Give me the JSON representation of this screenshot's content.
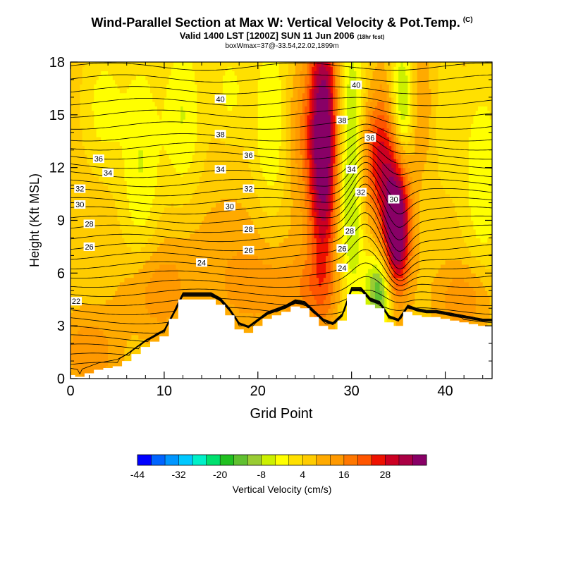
{
  "title": "Wind-Parallel Section at Max W: Vertical Velocity & Pot.Temp.",
  "title_mark": "(C)",
  "valid": "Valid 1400 LST [1200Z] SUN 11 Jun 2006",
  "valid_note": "(18hr fcst)",
  "box_info": "boxWmax=37@-33.54,22.02,1899m",
  "chart_data": {
    "type": "heatmap",
    "xlabel": "Grid Point",
    "ylabel": "Height (Kft MSL)",
    "xlim": [
      0,
      45
    ],
    "ylim": [
      0,
      18
    ],
    "xticks": [
      "0",
      "10",
      "20",
      "30",
      "40"
    ],
    "yticks": [
      "0",
      "3",
      "6",
      "9",
      "12",
      "15",
      "18"
    ],
    "colorbar": {
      "label": "Vertical Velocity (cm/s)",
      "tick_labels": [
        "-44",
        "-32",
        "-20",
        "-8",
        "4",
        "16",
        "28"
      ],
      "colors": [
        "#0000ff",
        "#0064ff",
        "#0096ff",
        "#00c8ff",
        "#00f0c8",
        "#00e06e",
        "#20c020",
        "#60c030",
        "#99cc33",
        "#ccf000",
        "#ffff00",
        "#ffe000",
        "#ffcc00",
        "#ffaa00",
        "#ff9900",
        "#ff7700",
        "#ff5500",
        "#ee1100",
        "#cc0022",
        "#aa0044",
        "#880066"
      ]
    },
    "theta_contour_labels": [
      {
        "value": "22",
        "x": 0.6,
        "z": 4.4
      },
      {
        "value": "24",
        "x": 14.0,
        "z": 6.6
      },
      {
        "value": "24",
        "x": 29.0,
        "z": 6.3
      },
      {
        "value": "26",
        "x": 2.0,
        "z": 7.5
      },
      {
        "value": "26",
        "x": 19.0,
        "z": 7.3
      },
      {
        "value": "26",
        "x": 29.0,
        "z": 7.4
      },
      {
        "value": "28",
        "x": 2.0,
        "z": 8.8
      },
      {
        "value": "28",
        "x": 19.0,
        "z": 8.5
      },
      {
        "value": "28",
        "x": 29.8,
        "z": 8.4
      },
      {
        "value": "30",
        "x": 1.0,
        "z": 9.9
      },
      {
        "value": "30",
        "x": 17.0,
        "z": 9.8
      },
      {
        "value": "30",
        "x": 34.5,
        "z": 10.2
      },
      {
        "value": "32",
        "x": 1.0,
        "z": 10.8
      },
      {
        "value": "32",
        "x": 19.0,
        "z": 10.8
      },
      {
        "value": "32",
        "x": 31.0,
        "z": 10.6
      },
      {
        "value": "34",
        "x": 4.0,
        "z": 11.7
      },
      {
        "value": "34",
        "x": 16.0,
        "z": 11.9
      },
      {
        "value": "34",
        "x": 30.0,
        "z": 11.9
      },
      {
        "value": "36",
        "x": 3.0,
        "z": 12.5
      },
      {
        "value": "36",
        "x": 19.0,
        "z": 12.7
      },
      {
        "value": "36",
        "x": 32.0,
        "z": 13.7
      },
      {
        "value": "38",
        "x": 16.0,
        "z": 13.9
      },
      {
        "value": "38",
        "x": 29.0,
        "z": 14.7
      },
      {
        "value": "40",
        "x": 16.0,
        "z": 15.9
      },
      {
        "value": "40",
        "x": 30.5,
        "z": 16.7
      }
    ],
    "terrain_kft": [
      0.2,
      0.1,
      0.3,
      0.5,
      0.6,
      0.7,
      1.0,
      1.4,
      1.8,
      2.1,
      2.4,
      3.4,
      4.5,
      4.5,
      4.5,
      4.5,
      4.2,
      3.6,
      2.8,
      2.6,
      3.0,
      3.4,
      3.6,
      3.8,
      4.1,
      4.0,
      3.5,
      3.0,
      2.8,
      3.3,
      4.8,
      4.8,
      4.2,
      4.0,
      3.2,
      3.0,
      3.8,
      3.6,
      3.5,
      3.5,
      3.4,
      3.3,
      3.2,
      3.1,
      3.0,
      3.0
    ],
    "w_features_cm_s": [
      {
        "x": 27.0,
        "z": 13.5,
        "w": 38,
        "sx": 1.1,
        "sz": 5.0
      },
      {
        "x": 34.8,
        "z": 8.5,
        "w": 40,
        "sx": 1.0,
        "sz": 2.5
      },
      {
        "x": 33.0,
        "z": 12.5,
        "w": 22,
        "sx": 1.6,
        "sz": 2.5
      },
      {
        "x": 36.0,
        "z": 15.5,
        "w": 16,
        "sx": 1.5,
        "sz": 2.5
      },
      {
        "x": 30.0,
        "z": 12.0,
        "w": -18,
        "sx": 1.1,
        "sz": 6.0
      },
      {
        "x": 35.5,
        "z": 15.5,
        "w": -32,
        "sx": 1.0,
        "sz": 2.5
      },
      {
        "x": 33.0,
        "z": 5.0,
        "w": -22,
        "sx": 1.0,
        "sz": 1.5
      },
      {
        "x": 7.5,
        "z": 12.0,
        "w": -10,
        "sx": 1.5,
        "sz": 5.0
      },
      {
        "x": 12.0,
        "z": 15.0,
        "w": -10,
        "sx": 1.5,
        "sz": 3.5
      },
      {
        "x": 3.5,
        "z": 15.5,
        "w": -8,
        "sx": 1.5,
        "sz": 2.5
      },
      {
        "x": 21.5,
        "z": 14.5,
        "w": -10,
        "sx": 1.5,
        "sz": 4.5
      },
      {
        "x": 17.0,
        "z": 16.5,
        "w": -7,
        "sx": 1.3,
        "sz": 2.0
      },
      {
        "x": 44.0,
        "z": 11.5,
        "w": -10,
        "sx": 1.5,
        "sz": 4.0
      },
      {
        "x": 40.0,
        "z": 15.0,
        "w": -5,
        "sx": 1.2,
        "sz": 3.0
      },
      {
        "x": 24.5,
        "z": 14.0,
        "w": 8,
        "sx": 1.3,
        "sz": 3.0
      },
      {
        "x": 9.0,
        "z": 5.0,
        "w": 10,
        "sx": 2.5,
        "sz": 2.0
      },
      {
        "x": 20.0,
        "z": 5.0,
        "w": 9,
        "sx": 3.0,
        "sz": 1.5
      },
      {
        "x": 26.0,
        "z": 5.0,
        "w": 8,
        "sx": 2.0,
        "sz": 1.5
      },
      {
        "x": 2.0,
        "z": 1.5,
        "w": 10,
        "sx": 2.0,
        "sz": 1.5
      },
      {
        "x": 42.0,
        "z": 4.5,
        "w": 10,
        "sx": 2.0,
        "sz": 1.5
      },
      {
        "x": 18.0,
        "z": 8.0,
        "w": 4,
        "sx": 5.0,
        "sz": 2.0
      }
    ]
  }
}
